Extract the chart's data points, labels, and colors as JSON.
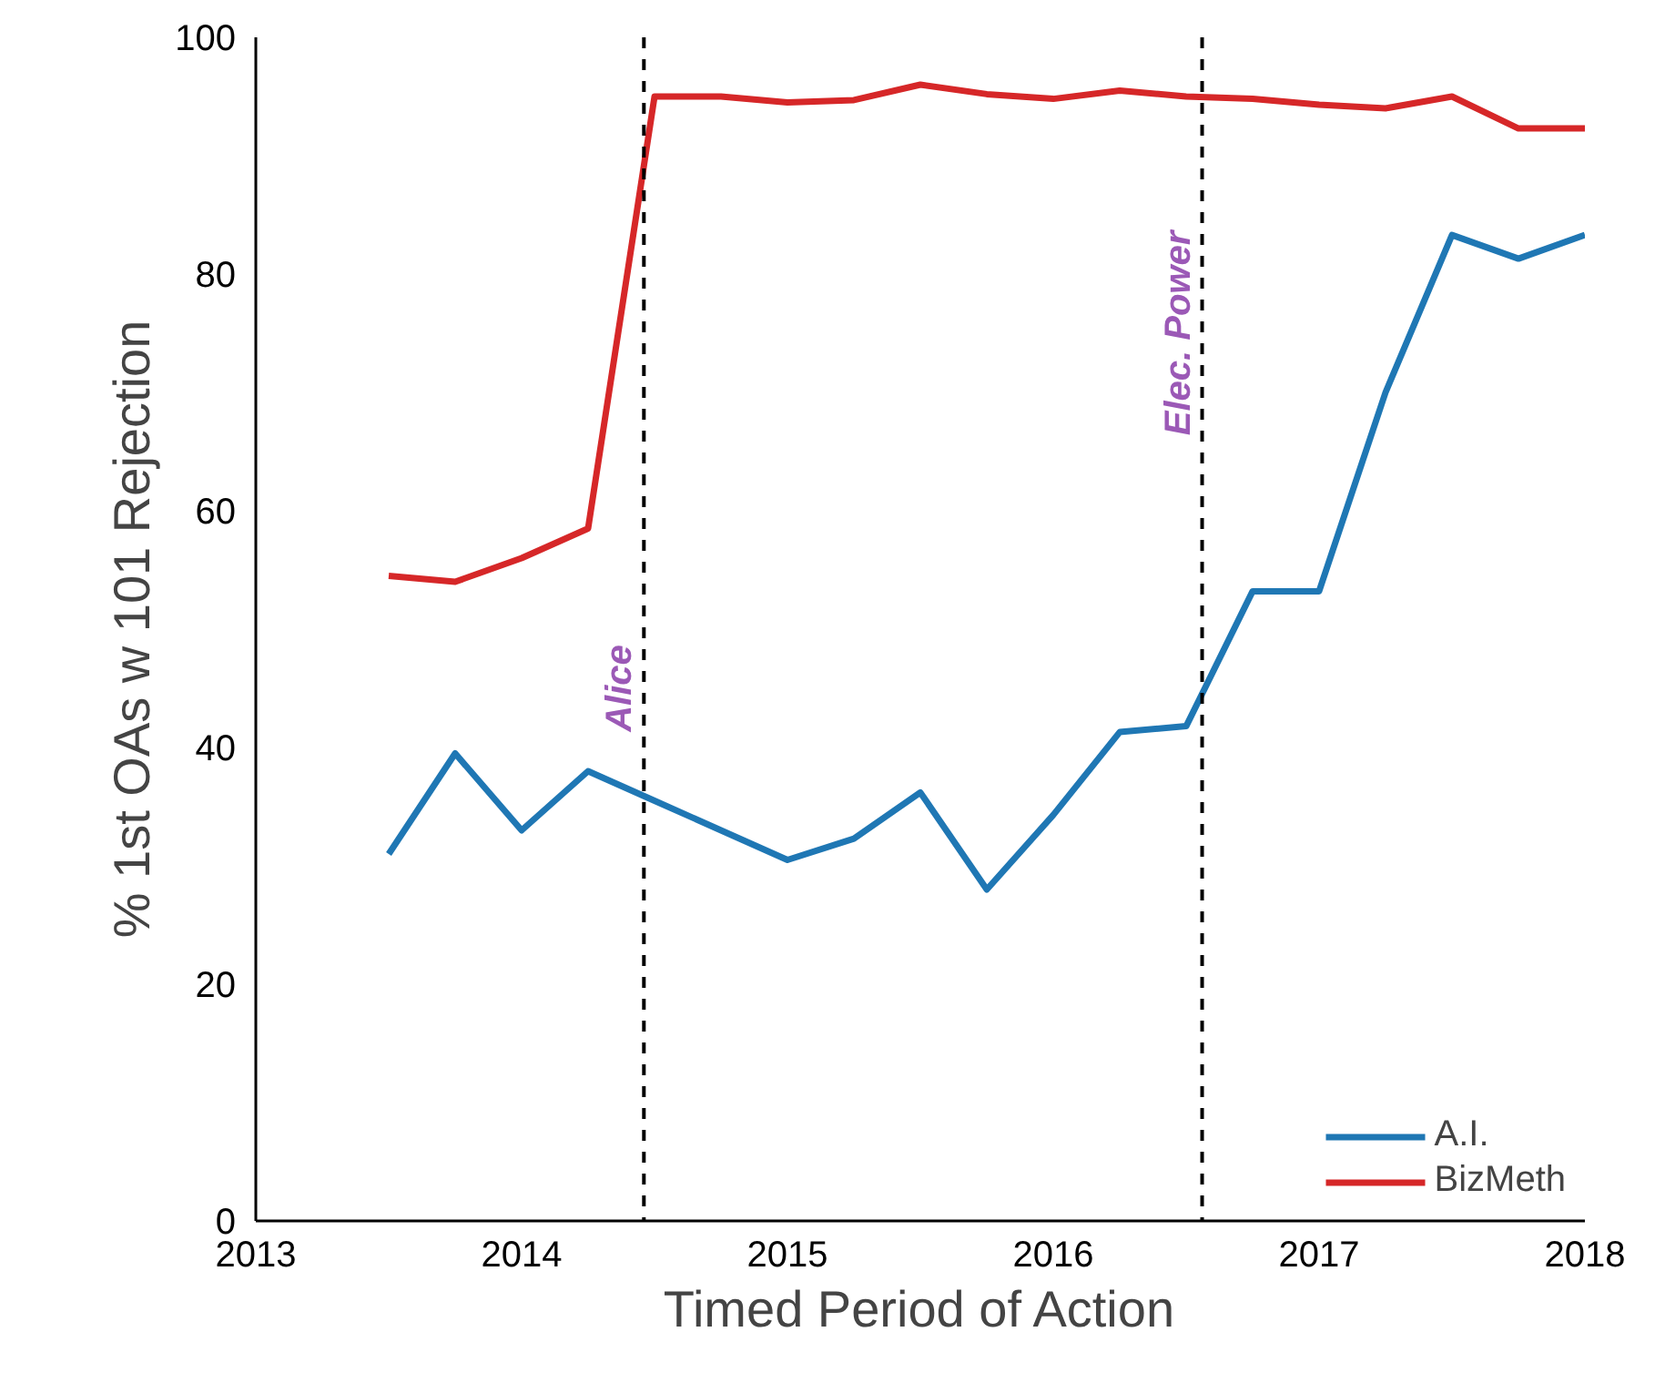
{
  "chart_data": {
    "type": "line",
    "xlabel": "Timed Period of Action",
    "ylabel": "% 1st OAs w 101 Rejection",
    "x": [
      2013.5,
      2013.75,
      2014,
      2014.25,
      2014.5,
      2014.75,
      2015,
      2015.25,
      2015.5,
      2015.75,
      2016,
      2016.25,
      2016.5,
      2016.75,
      2017,
      2017.25,
      2017.5,
      2017.75,
      2018
    ],
    "series": [
      {
        "name": "A.I.",
        "color": "#1f77b4",
        "values": [
          31,
          39.5,
          33,
          38,
          35.5,
          33,
          30.5,
          32.3,
          36.2,
          28,
          34.3,
          41.3,
          41.8,
          53.2,
          53.2,
          70,
          83.3,
          81.3,
          83.3
        ]
      },
      {
        "name": "BizMeth",
        "color": "#d62728",
        "values": [
          54.5,
          54,
          56,
          58.5,
          95,
          95,
          94.5,
          94.7,
          96,
          95.2,
          94.8,
          95.5,
          95,
          94.8,
          94.3,
          94,
          95,
          92.3,
          92.3
        ]
      }
    ],
    "xlim": [
      2013,
      2018
    ],
    "xticks": [
      2013,
      2014,
      2015,
      2016,
      2017,
      2018
    ],
    "ylim": [
      0,
      100
    ],
    "yticks": [
      0,
      20,
      40,
      60,
      80,
      100
    ],
    "ref_lines": [
      {
        "axis": "x",
        "value": 2014.46,
        "label": "Alice",
        "color": "#000000",
        "line_style": "dashed"
      },
      {
        "axis": "x",
        "value": 2016.56,
        "label": "Elec. Power",
        "color": "#000000",
        "line_style": "dashed"
      }
    ],
    "grid": false,
    "legend": "bottom right",
    "line_style": "solid"
  }
}
